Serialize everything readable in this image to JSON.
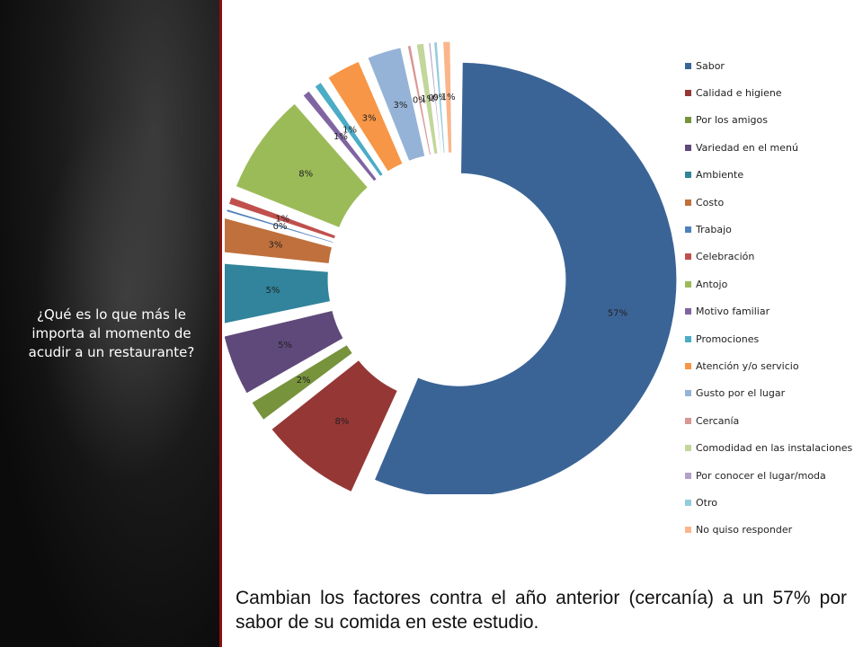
{
  "sidebar": {
    "question": "¿Qué es lo que más le importa al momento de acudir a un restaurante?"
  },
  "caption": "Cambian los factores contra el año anterior (cercanía) a un 57% por sabor de su comida en este estudio.",
  "chart_data": {
    "type": "pie",
    "style": "exploded-doughnut",
    "categories": [
      "Sabor",
      "Calidad e higiene",
      "Por los amigos",
      "Variedad en el menú",
      "Ambiente",
      "Costo",
      "Trabajo",
      "Celebración",
      "Antojo",
      "Motivo familiar",
      "Promociones",
      "Atención y/o servicio",
      "Gusto por el lugar",
      "Cercanía",
      "Comodidad en las instalaciones",
      "Por conocer el lugar/moda",
      "Otro",
      "No quiso responder"
    ],
    "values": [
      57,
      8,
      2,
      5,
      5,
      3,
      0.4,
      1,
      8,
      1,
      1,
      3,
      3,
      0.5,
      1,
      0.3,
      0.5,
      1
    ],
    "labels": [
      "57%",
      "8%",
      "2%",
      "5%",
      "5%",
      "3%",
      "0%",
      "1%",
      "8%",
      "1%",
      "1%",
      "3%",
      "3%",
      "0%",
      "1%",
      "0%",
      "0%",
      "1%"
    ],
    "colors": [
      "#3b6496",
      "#953735",
      "#77933c",
      "#5f497a",
      "#31849b",
      "#c0703c",
      "#4f81bd",
      "#c0504d",
      "#9bbb59",
      "#8064a2",
      "#4bacc6",
      "#f79646",
      "#95b3d7",
      "#d99694",
      "#c3d69b",
      "#b3a2c7",
      "#92cddc",
      "#fab68a"
    ],
    "legend_position": "right"
  }
}
